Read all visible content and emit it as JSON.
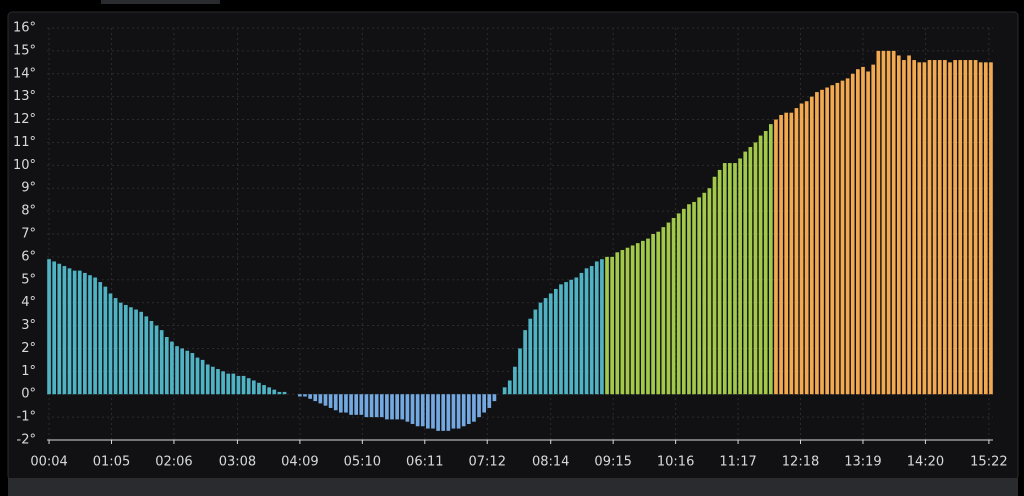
{
  "chart_data": {
    "type": "bar",
    "x": [
      4,
      9,
      14,
      19,
      24,
      29,
      34,
      39,
      44,
      49,
      54,
      59,
      64,
      69,
      74,
      79,
      84,
      89,
      94,
      99,
      104,
      109,
      114,
      119,
      124,
      129,
      134,
      139,
      144,
      149,
      154,
      159,
      164,
      169,
      174,
      179,
      184,
      189,
      194,
      199,
      204,
      209,
      214,
      219,
      224,
      229,
      234,
      239,
      244,
      249,
      254,
      259,
      264,
      269,
      274,
      279,
      284,
      289,
      294,
      299,
      304,
      309,
      314,
      319,
      324,
      329,
      334,
      339,
      344,
      349,
      354,
      359,
      364,
      369,
      374,
      379,
      384,
      389,
      394,
      399,
      404,
      409,
      414,
      419,
      424,
      429,
      434,
      439,
      444,
      449,
      454,
      459,
      464,
      469,
      474,
      479,
      484,
      489,
      494,
      499,
      504,
      509,
      514,
      519,
      524,
      529,
      534,
      539,
      544,
      549,
      554,
      559,
      564,
      569,
      574,
      579,
      584,
      589,
      594,
      599,
      604,
      609,
      614,
      619,
      624,
      629,
      634,
      639,
      644,
      649,
      654,
      659,
      664,
      669,
      674,
      679,
      684,
      689,
      694,
      699,
      704,
      709,
      714,
      719,
      724,
      729,
      734,
      739,
      744,
      749,
      754,
      759,
      764,
      769,
      774,
      779,
      784,
      789,
      794,
      799,
      804,
      809,
      814,
      819,
      824,
      829,
      834,
      839,
      844,
      849,
      854,
      859,
      864,
      869,
      874,
      879,
      884,
      889,
      894,
      899,
      904,
      909,
      914,
      919,
      924
    ],
    "values": [
      5.9,
      5.8,
      5.7,
      5.6,
      5.5,
      5.4,
      5.4,
      5.3,
      5.2,
      5.1,
      4.9,
      4.7,
      4.4,
      4.2,
      4.0,
      3.9,
      3.8,
      3.7,
      3.6,
      3.4,
      3.2,
      3.0,
      2.8,
      2.5,
      2.3,
      2.1,
      2.0,
      1.9,
      1.8,
      1.6,
      1.5,
      1.3,
      1.2,
      1.1,
      1.0,
      0.9,
      0.9,
      0.8,
      0.8,
      0.7,
      0.6,
      0.5,
      0.4,
      0.3,
      0.2,
      0.1,
      0.1,
      0,
      0,
      -0.1,
      -0.1,
      -0.2,
      -0.3,
      -0.4,
      -0.5,
      -0.6,
      -0.7,
      -0.8,
      -0.8,
      -0.9,
      -0.9,
      -0.9,
      -1.0,
      -1.0,
      -1.0,
      -1.0,
      -1.1,
      -1.1,
      -1.1,
      -1.1,
      -1.2,
      -1.3,
      -1.4,
      -1.4,
      -1.5,
      -1.5,
      -1.6,
      -1.6,
      -1.6,
      -1.5,
      -1.5,
      -1.4,
      -1.3,
      -1.2,
      -1.0,
      -0.8,
      -0.6,
      -0.3,
      0,
      0.3,
      0.6,
      1.2,
      2.0,
      2.8,
      3.3,
      3.7,
      4.0,
      4.2,
      4.4,
      4.6,
      4.8,
      4.9,
      5.0,
      5.1,
      5.3,
      5.5,
      5.6,
      5.8,
      5.9,
      6.0,
      6.0,
      6.2,
      6.3,
      6.4,
      6.5,
      6.6,
      6.7,
      6.8,
      7.0,
      7.1,
      7.3,
      7.5,
      7.7,
      7.9,
      8.1,
      8.3,
      8.4,
      8.6,
      8.8,
      9.0,
      9.5,
      9.8,
      10.1,
      10.1,
      10.1,
      10.3,
      10.6,
      10.8,
      11.0,
      11.3,
      11.5,
      11.8,
      12.0,
      12.2,
      12.3,
      12.3,
      12.5,
      12.7,
      12.8,
      13.0,
      13.2,
      13.3,
      13.4,
      13.5,
      13.6,
      13.7,
      13.8,
      14.0,
      14.2,
      14.3,
      14.1,
      14.4,
      15.0,
      15.0,
      15.0,
      15.0,
      14.8,
      14.6,
      14.8,
      14.6,
      14.5,
      14.5,
      14.6,
      14.6,
      14.6,
      14.6,
      14.5,
      14.6,
      14.6,
      14.6,
      14.6,
      14.6,
      14.5,
      14.5,
      14.5
    ],
    "color": "#f2a950",
    "color_thresholds": [
      {
        "below": 0,
        "color": "#73a9e0"
      },
      {
        "below": 6,
        "color": "#4fb3c4"
      },
      {
        "below": 12,
        "color": "#a3c94a"
      }
    ],
    "xlim": [
      2,
      926
    ],
    "xticks": [
      {
        "value": 4,
        "label": "00:04"
      },
      {
        "value": 65,
        "label": "01:05"
      },
      {
        "value": 126,
        "label": "02:06"
      },
      {
        "value": 188,
        "label": "03:08"
      },
      {
        "value": 249,
        "label": "04:09"
      },
      {
        "value": 310,
        "label": "05:10"
      },
      {
        "value": 371,
        "label": "06:11"
      },
      {
        "value": 432,
        "label": "07:12"
      },
      {
        "value": 494,
        "label": "08:14"
      },
      {
        "value": 555,
        "label": "09:15"
      },
      {
        "value": 616,
        "label": "10:16"
      },
      {
        "value": 677,
        "label": "11:17"
      },
      {
        "value": 738,
        "label": "12:18"
      },
      {
        "value": 799,
        "label": "13:19"
      },
      {
        "value": 860,
        "label": "14:20"
      },
      {
        "value": 922,
        "label": "15:22"
      }
    ],
    "ylim": [
      -2,
      16
    ],
    "yticks": [
      {
        "value": -2,
        "label": "-2°"
      },
      {
        "value": -1,
        "label": "-1°"
      },
      {
        "value": 0,
        "label": "0°"
      },
      {
        "value": 1,
        "label": "1°"
      },
      {
        "value": 2,
        "label": "2°"
      },
      {
        "value": 3,
        "label": "3°"
      },
      {
        "value": 4,
        "label": "4°"
      },
      {
        "value": 5,
        "label": "5°"
      },
      {
        "value": 6,
        "label": "6°"
      },
      {
        "value": 7,
        "label": "7°"
      },
      {
        "value": 8,
        "label": "8°"
      },
      {
        "value": 9,
        "label": "9°"
      },
      {
        "value": 10,
        "label": "10°"
      },
      {
        "value": 11,
        "label": "11°"
      },
      {
        "value": 12,
        "label": "12°"
      },
      {
        "value": 13,
        "label": "13°"
      },
      {
        "value": 14,
        "label": "14°"
      },
      {
        "value": 15,
        "label": "15°"
      },
      {
        "value": 16,
        "label": "16°"
      }
    ],
    "grid": true
  }
}
